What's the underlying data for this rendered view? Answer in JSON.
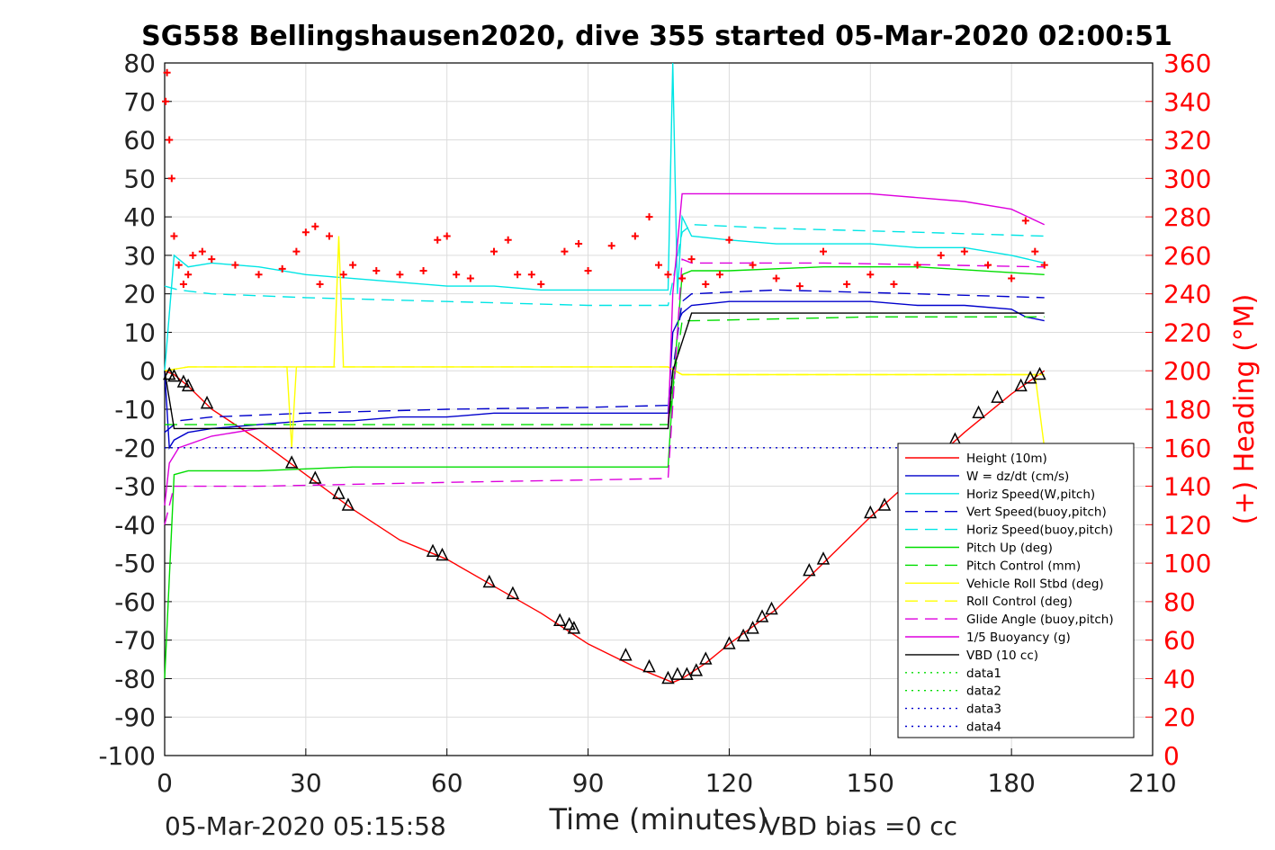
{
  "chart_data": {
    "type": "line",
    "title": "SG558 Bellingshausen2020, dive 355 started 05-Mar-2020 02:00:51",
    "xlabel": "Time (minutes)",
    "ylabel_right": "(+) Heading (°M)",
    "footer_left": "05-Mar-2020 05:15:58",
    "footer_right": "VBD bias =0 cc",
    "xlim": [
      0,
      210
    ],
    "ylim": [
      -100,
      80
    ],
    "ylim_right": [
      0,
      360
    ],
    "xticks": [
      0,
      30,
      60,
      90,
      120,
      150,
      180,
      210
    ],
    "yticks": [
      -100,
      -90,
      -80,
      -70,
      -60,
      -50,
      -40,
      -30,
      -20,
      -10,
      0,
      10,
      20,
      30,
      40,
      50,
      60,
      70,
      80
    ],
    "yticks_right": [
      0,
      20,
      40,
      60,
      80,
      100,
      120,
      140,
      160,
      180,
      200,
      220,
      240,
      260,
      280,
      300,
      320,
      340,
      360
    ],
    "grid": true,
    "legend_position": "bottom-right",
    "colors": {
      "right_axis": "#ff0000"
    },
    "series": [
      {
        "name": "Height (10m)",
        "color": "#ff0000",
        "dash": "solid",
        "x": [
          0,
          2,
          5,
          10,
          20,
          30,
          40,
          50,
          60,
          70,
          80,
          90,
          100,
          108,
          110,
          115,
          120,
          130,
          140,
          150,
          160,
          170,
          180,
          187
        ],
        "y": [
          0,
          -1,
          -4,
          -10,
          -18,
          -27,
          -36,
          -44,
          -49,
          -56,
          -63,
          -71,
          -77,
          -81,
          -80,
          -76,
          -71,
          -62,
          -50,
          -38,
          -27,
          -16,
          -6,
          0
        ]
      },
      {
        "name": "W = dz/dt (cm/s)",
        "color": "#0000cc",
        "dash": "solid",
        "x": [
          0,
          1,
          2,
          5,
          10,
          20,
          30,
          40,
          50,
          60,
          70,
          80,
          90,
          100,
          107,
          108,
          110,
          112,
          120,
          130,
          140,
          150,
          160,
          170,
          180,
          183,
          187
        ],
        "y": [
          0,
          -20,
          -18,
          -16,
          -15,
          -14,
          -13,
          -13,
          -12,
          -12,
          -11,
          -11,
          -11,
          -11,
          -11,
          10,
          15,
          17,
          18,
          18,
          18,
          18,
          17,
          17,
          16,
          14,
          13
        ]
      },
      {
        "name": "Horiz Speed(W,pitch)",
        "color": "#00e5e5",
        "dash": "solid",
        "x": [
          0,
          2,
          5,
          10,
          20,
          30,
          40,
          50,
          60,
          70,
          80,
          90,
          100,
          107,
          108,
          109,
          110,
          112,
          120,
          130,
          140,
          150,
          160,
          170,
          180,
          187
        ],
        "y": [
          0,
          30,
          27,
          28,
          27,
          25,
          24,
          23,
          22,
          22,
          21,
          21,
          21,
          21,
          80,
          20,
          40,
          35,
          34,
          33,
          33,
          33,
          32,
          32,
          30,
          28
        ]
      },
      {
        "name": "Vert Speed(buoy,pitch)",
        "color": "#0000cc",
        "dash": "dash",
        "x": [
          0,
          3,
          10,
          30,
          60,
          90,
          107,
          110,
          112,
          130,
          160,
          187
        ],
        "y": [
          -16,
          -13,
          -12,
          -11,
          -10,
          -9.5,
          -9,
          18,
          20,
          21,
          20,
          19
        ]
      },
      {
        "name": "Horiz Speed(buoy,pitch)",
        "color": "#00e5e5",
        "dash": "dash",
        "x": [
          0,
          3,
          10,
          30,
          60,
          90,
          107,
          110,
          112,
          130,
          160,
          187
        ],
        "y": [
          22,
          21,
          20,
          19,
          18,
          17,
          17,
          36,
          38,
          37,
          36,
          35
        ]
      },
      {
        "name": "Pitch Up (deg)",
        "color": "#00dd00",
        "dash": "solid",
        "x": [
          0,
          2,
          5,
          20,
          40,
          60,
          80,
          107,
          108,
          110,
          112,
          120,
          140,
          160,
          187
        ],
        "y": [
          -80,
          -27,
          -26,
          -26,
          -25,
          -25,
          -25,
          -25,
          -5,
          25,
          26,
          26,
          27,
          27,
          25
        ]
      },
      {
        "name": "Pitch Control (mm)",
        "color": "#00dd00",
        "dash": "dash",
        "x": [
          0,
          3,
          10,
          50,
          107,
          110,
          112,
          150,
          187
        ],
        "y": [
          -14,
          -14,
          -14,
          -14,
          -14,
          13,
          13,
          14,
          14
        ]
      },
      {
        "name": "Vehicle Roll Stbd (deg)",
        "color": "#ffff00",
        "dash": "solid",
        "x": [
          0,
          5,
          10,
          26,
          27,
          28,
          36,
          37,
          38,
          50,
          107,
          110,
          112,
          120,
          150,
          185,
          187
        ],
        "y": [
          0,
          1,
          1,
          1,
          -20,
          1,
          1,
          35,
          1,
          1,
          1,
          -1,
          -1,
          -1,
          -1,
          -1,
          -20
        ]
      },
      {
        "name": "Roll Control (deg)",
        "color": "#ffff00",
        "dash": "dash",
        "x": [
          0,
          5,
          10,
          30,
          60,
          90,
          107,
          110,
          120,
          150,
          187
        ],
        "y": [
          0,
          1,
          1,
          1,
          1,
          1,
          1,
          -1,
          -1,
          -1,
          -1
        ]
      },
      {
        "name": "Glide Angle (buoy,pitch)",
        "color": "#dd00dd",
        "dash": "dash",
        "x": [
          0,
          2,
          5,
          20,
          60,
          107,
          110,
          112,
          140,
          187
        ],
        "y": [
          -40,
          -30,
          -30,
          -30,
          -29,
          -28,
          29,
          28,
          28,
          27
        ]
      },
      {
        "name": "1/5 Buoyancy (g)",
        "color": "#dd00dd",
        "dash": "solid",
        "x": [
          0,
          1,
          3,
          10,
          20,
          40,
          107,
          108,
          110,
          112,
          150,
          170,
          180,
          187
        ],
        "y": [
          -35,
          -24,
          -20,
          -17,
          -15,
          -15,
          -15,
          20,
          46,
          46,
          46,
          44,
          42,
          38
        ]
      },
      {
        "name": "VBD (10 cc)",
        "color": "#000000",
        "dash": "solid",
        "x": [
          0,
          2,
          4,
          10,
          30,
          60,
          107,
          108,
          112,
          150,
          187
        ],
        "y": [
          0,
          -15,
          -15,
          -15,
          -15,
          -15,
          -15,
          0,
          15,
          15,
          15
        ]
      },
      {
        "name": "data1",
        "color": "#00dd00",
        "dash": "dot",
        "x": [],
        "y": []
      },
      {
        "name": "data2",
        "color": "#00dd00",
        "dash": "dot",
        "x": [],
        "y": []
      },
      {
        "name": "data3",
        "color": "#0000cc",
        "dash": "dot",
        "x": [],
        "y": []
      },
      {
        "name": "data4",
        "color": "#0000cc",
        "dash": "dot",
        "x": [
          0,
          187
        ],
        "y": [
          -20,
          -20
        ]
      }
    ],
    "heading": {
      "axis": "right",
      "color": "#ff0000",
      "marker": "+",
      "x": [
        0.2,
        0.5,
        1,
        1.5,
        2,
        3,
        4,
        5,
        6,
        8,
        10,
        15,
        20,
        25,
        28,
        30,
        32,
        33,
        35,
        38,
        40,
        45,
        50,
        55,
        58,
        60,
        62,
        65,
        70,
        73,
        75,
        78,
        80,
        85,
        88,
        90,
        95,
        100,
        103,
        105,
        107,
        110,
        112,
        115,
        118,
        120,
        125,
        130,
        135,
        140,
        145,
        150,
        155,
        160,
        165,
        170,
        175,
        180,
        183,
        185,
        187
      ],
      "y": [
        340,
        355,
        320,
        300,
        270,
        255,
        245,
        250,
        260,
        262,
        258,
        255,
        250,
        253,
        262,
        272,
        275,
        245,
        270,
        250,
        255,
        252,
        250,
        252,
        268,
        270,
        250,
        248,
        262,
        268,
        250,
        250,
        245,
        262,
        266,
        252,
        265,
        270,
        280,
        255,
        250,
        248,
        258,
        245,
        250,
        268,
        255,
        248,
        244,
        262,
        245,
        250,
        245,
        255,
        260,
        262,
        255,
        248,
        278,
        262,
        255
      ]
    },
    "vbd_markers": {
      "symbol": "triangle",
      "x": [
        1,
        2,
        4,
        5,
        9,
        27,
        32,
        37,
        39,
        57,
        59,
        69,
        74,
        84,
        86,
        87,
        98,
        103,
        107,
        109,
        111,
        113,
        115,
        120,
        123,
        125,
        127,
        129,
        137,
        140,
        150,
        153,
        168,
        173,
        177,
        182,
        184,
        186
      ],
      "y": [
        -1,
        -1.5,
        -3,
        -4,
        -8.5,
        -24,
        -28,
        -32,
        -35,
        -47,
        -48,
        -55,
        -58,
        -65,
        -66,
        -67,
        -74,
        -77,
        -80,
        -79,
        -79,
        -78,
        -75,
        -71,
        -69,
        -67,
        -64,
        -62,
        -52,
        -49,
        -37,
        -35,
        -18,
        -11,
        -7,
        -4,
        -2,
        -1
      ]
    }
  }
}
